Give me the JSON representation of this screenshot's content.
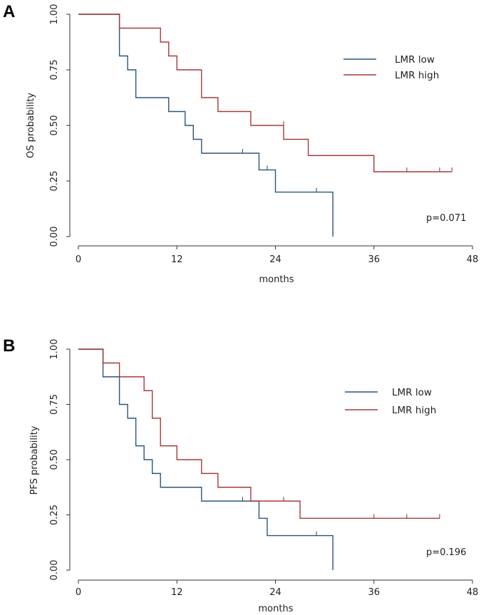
{
  "chart_data": [
    {
      "panel": "A",
      "type": "line",
      "subtype": "kaplan-meier",
      "xlabel": "months",
      "ylabel": "OS probability",
      "xlim": [
        0,
        48
      ],
      "ylim": [
        0,
        1
      ],
      "xticks": [
        0,
        12,
        24,
        36,
        48
      ],
      "yticks": [
        "0.00",
        "0.25",
        "0.50",
        "0.75",
        "1.00"
      ],
      "legend_position": "top-right",
      "annotation": "p=0.071",
      "series": [
        {
          "name": "LMR low",
          "color": "#2b557c",
          "steps": [
            [
              0,
              1.0
            ],
            [
              5,
              0.8125
            ],
            [
              6,
              0.75
            ],
            [
              7,
              0.625
            ],
            [
              11,
              0.5625
            ],
            [
              13,
              0.5
            ],
            [
              14,
              0.4375
            ],
            [
              15,
              0.375
            ],
            [
              22,
              0.3
            ],
            [
              24,
              0.2
            ],
            [
              31,
              0.0
            ]
          ],
          "end": 31,
          "censored": [
            [
              20,
              0.375
            ],
            [
              23,
              0.3
            ],
            [
              29,
              0.2
            ]
          ]
        },
        {
          "name": "LMR high",
          "color": "#a73a3a",
          "steps": [
            [
              0,
              1.0
            ],
            [
              5,
              0.9375
            ],
            [
              10,
              0.875
            ],
            [
              11,
              0.8125
            ],
            [
              12,
              0.75
            ],
            [
              15,
              0.625
            ],
            [
              17,
              0.5625
            ],
            [
              21,
              0.5
            ],
            [
              25,
              0.4375
            ],
            [
              28,
              0.3646
            ],
            [
              36,
              0.2917
            ]
          ],
          "end": 45.5,
          "censored": [
            [
              25,
              0.5
            ],
            [
              36,
              0.2917
            ],
            [
              40,
              0.2917
            ],
            [
              44,
              0.2917
            ],
            [
              45.5,
              0.2917
            ]
          ]
        }
      ]
    },
    {
      "panel": "B",
      "type": "line",
      "subtype": "kaplan-meier",
      "xlabel": "months",
      "ylabel": "PFS probability",
      "xlim": [
        0,
        48
      ],
      "ylim": [
        0,
        1
      ],
      "xticks": [
        0,
        12,
        24,
        36,
        48
      ],
      "yticks": [
        "0.00",
        "0.25",
        "0.50",
        "0.75",
        "1.00"
      ],
      "legend_position": "top-right",
      "annotation": "p=0.196",
      "series": [
        {
          "name": "LMR low",
          "color": "#2b557c",
          "steps": [
            [
              0,
              1.0
            ],
            [
              3,
              0.875
            ],
            [
              5,
              0.75
            ],
            [
              6,
              0.6875
            ],
            [
              7,
              0.5625
            ],
            [
              8,
              0.5
            ],
            [
              9,
              0.4375
            ],
            [
              10,
              0.375
            ],
            [
              15,
              0.3125
            ],
            [
              22,
              0.2344
            ],
            [
              23,
              0.1563
            ],
            [
              31,
              0.0
            ]
          ],
          "end": 31,
          "censored": [
            [
              20,
              0.3125
            ],
            [
              29,
              0.1563
            ]
          ]
        },
        {
          "name": "LMR high",
          "color": "#a73a3a",
          "steps": [
            [
              0,
              1.0
            ],
            [
              3,
              0.9375
            ],
            [
              5,
              0.875
            ],
            [
              8,
              0.8125
            ],
            [
              9,
              0.6875
            ],
            [
              10,
              0.5625
            ],
            [
              12,
              0.5
            ],
            [
              15,
              0.4375
            ],
            [
              17,
              0.375
            ],
            [
              21,
              0.3125
            ],
            [
              27,
              0.2344
            ]
          ],
          "end": 44,
          "censored": [
            [
              25,
              0.3125
            ],
            [
              36,
              0.2344
            ],
            [
              40,
              0.2344
            ],
            [
              44,
              0.2344
            ]
          ]
        }
      ]
    }
  ]
}
